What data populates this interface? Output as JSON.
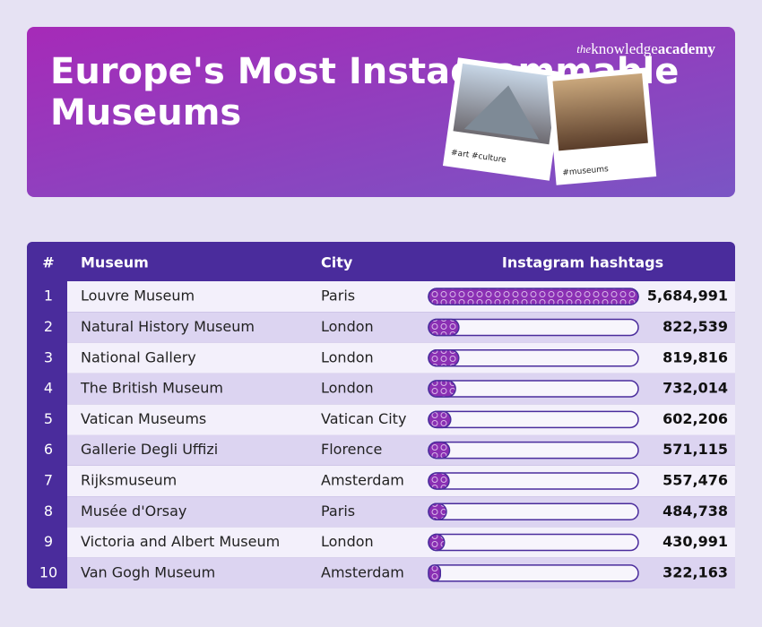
{
  "chart_data": {
    "type": "bar",
    "title": "Europe's Most Instagrammable Museums",
    "brand": {
      "pre": "the",
      "mid": "knowledge",
      "end": "academy"
    },
    "photo_captions": [
      "#art #culture",
      "#museums"
    ],
    "column_headers": [
      "#",
      "Museum",
      "City",
      "Instagram hashtags"
    ],
    "ranks": [
      "1",
      "2",
      "3",
      "4",
      "5",
      "6",
      "7",
      "8",
      "9",
      "10"
    ],
    "categories": [
      "Louvre Museum",
      "Natural History Museum",
      "National Gallery",
      "The British Museum",
      "Vatican Museums",
      "Gallerie Degli Uffizi",
      "Rijksmuseum",
      "Musée d'Orsay",
      "Victoria and Albert Museum",
      "Van Gogh Museum"
    ],
    "cities": [
      "Paris",
      "London",
      "London",
      "London",
      "Vatican City",
      "Florence",
      "Amsterdam",
      "Paris",
      "London",
      "Amsterdam"
    ],
    "values": [
      5684991,
      822539,
      819816,
      732014,
      602206,
      571115,
      557476,
      484738,
      430991,
      322163
    ],
    "value_labels": [
      "5,684,991",
      "822,539",
      "819,816",
      "732,014",
      "602,206",
      "571,115",
      "557,476",
      "484,738",
      "430,991",
      "322,163"
    ],
    "color": "#8a2fb3"
  }
}
